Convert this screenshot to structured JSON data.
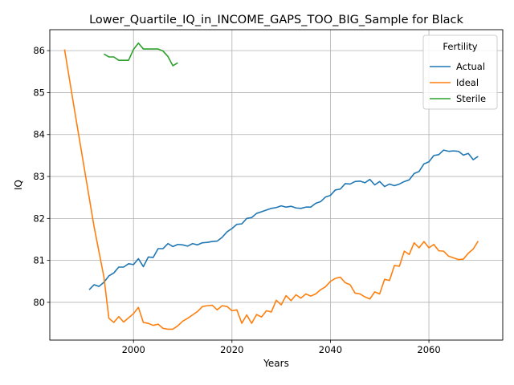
{
  "chart_data": {
    "type": "line",
    "title": "Lower_Quartile_IQ_in_INCOME_GAPS_TOO_BIG_Sample for Black",
    "xlabel": "Years",
    "ylabel": "IQ",
    "xlim": [
      1983,
      2075
    ],
    "ylim": [
      79.1,
      86.5
    ],
    "xticks": [
      2000,
      2020,
      2040,
      2060
    ],
    "yticks": [
      80,
      81,
      82,
      83,
      84,
      85,
      86
    ],
    "grid": true,
    "legend": {
      "title": "Fertility",
      "placement": "top-right"
    },
    "series": [
      {
        "name": "Actual",
        "color": "#1f77b4",
        "points": [
          [
            1991,
            80.3
          ],
          [
            1992,
            80.42
          ],
          [
            1993,
            80.38
          ],
          [
            1994,
            80.48
          ],
          [
            1995,
            80.63
          ],
          [
            1996,
            80.7
          ],
          [
            1997,
            80.84
          ],
          [
            1998,
            80.84
          ],
          [
            1999,
            80.92
          ],
          [
            2000,
            80.9
          ],
          [
            2001,
            81.04
          ],
          [
            2002,
            80.85
          ],
          [
            2003,
            81.08
          ],
          [
            2004,
            81.07
          ],
          [
            2005,
            81.28
          ],
          [
            2006,
            81.28
          ],
          [
            2007,
            81.4
          ],
          [
            2008,
            81.33
          ],
          [
            2009,
            81.38
          ],
          [
            2010,
            81.37
          ],
          [
            2011,
            81.34
          ],
          [
            2012,
            81.4
          ],
          [
            2013,
            81.37
          ],
          [
            2014,
            81.42
          ],
          [
            2015,
            81.43
          ],
          [
            2016,
            81.45
          ],
          [
            2017,
            81.46
          ],
          [
            2018,
            81.55
          ],
          [
            2019,
            81.68
          ],
          [
            2020,
            81.76
          ],
          [
            2021,
            81.86
          ],
          [
            2022,
            81.87
          ],
          [
            2023,
            82.0
          ],
          [
            2024,
            82.02
          ],
          [
            2025,
            82.12
          ],
          [
            2026,
            82.16
          ],
          [
            2027,
            82.2
          ],
          [
            2028,
            82.24
          ],
          [
            2029,
            82.26
          ],
          [
            2030,
            82.3
          ],
          [
            2031,
            82.27
          ],
          [
            2032,
            82.29
          ],
          [
            2033,
            82.25
          ],
          [
            2034,
            82.24
          ],
          [
            2035,
            82.27
          ],
          [
            2036,
            82.27
          ],
          [
            2037,
            82.36
          ],
          [
            2038,
            82.4
          ],
          [
            2039,
            82.51
          ],
          [
            2040,
            82.55
          ],
          [
            2041,
            82.68
          ],
          [
            2042,
            82.7
          ],
          [
            2043,
            82.83
          ],
          [
            2044,
            82.82
          ],
          [
            2045,
            82.88
          ],
          [
            2046,
            82.89
          ],
          [
            2047,
            82.85
          ],
          [
            2048,
            82.93
          ],
          [
            2049,
            82.8
          ],
          [
            2050,
            82.88
          ],
          [
            2051,
            82.76
          ],
          [
            2052,
            82.82
          ],
          [
            2053,
            82.78
          ],
          [
            2054,
            82.82
          ],
          [
            2055,
            82.88
          ],
          [
            2056,
            82.92
          ],
          [
            2057,
            83.07
          ],
          [
            2058,
            83.12
          ],
          [
            2059,
            83.3
          ],
          [
            2060,
            83.35
          ],
          [
            2061,
            83.5
          ],
          [
            2062,
            83.52
          ],
          [
            2063,
            83.63
          ],
          [
            2064,
            83.6
          ],
          [
            2065,
            83.61
          ],
          [
            2066,
            83.6
          ],
          [
            2067,
            83.51
          ],
          [
            2068,
            83.55
          ],
          [
            2069,
            83.4
          ],
          [
            2070,
            83.48
          ]
        ]
      },
      {
        "name": "Ideal",
        "color": "#ff7f0e",
        "points": [
          [
            1986,
            86.03
          ],
          [
            1988,
            84.6
          ],
          [
            1990,
            83.2
          ],
          [
            1992,
            81.8
          ],
          [
            1994,
            80.6
          ],
          [
            1995,
            79.62
          ],
          [
            1996,
            79.52
          ],
          [
            1997,
            79.66
          ],
          [
            1998,
            79.53
          ],
          [
            1999,
            79.63
          ],
          [
            2000,
            79.73
          ],
          [
            2001,
            79.88
          ],
          [
            2002,
            79.52
          ],
          [
            2003,
            79.5
          ],
          [
            2004,
            79.45
          ],
          [
            2005,
            79.48
          ],
          [
            2006,
            79.38
          ],
          [
            2007,
            79.36
          ],
          [
            2008,
            79.36
          ],
          [
            2009,
            79.44
          ],
          [
            2010,
            79.55
          ],
          [
            2011,
            79.62
          ],
          [
            2012,
            79.7
          ],
          [
            2013,
            79.78
          ],
          [
            2014,
            79.9
          ],
          [
            2015,
            79.92
          ],
          [
            2016,
            79.93
          ],
          [
            2017,
            79.82
          ],
          [
            2018,
            79.92
          ],
          [
            2019,
            79.9
          ],
          [
            2020,
            79.8
          ],
          [
            2021,
            79.82
          ],
          [
            2022,
            79.5
          ],
          [
            2023,
            79.7
          ],
          [
            2024,
            79.5
          ],
          [
            2025,
            79.71
          ],
          [
            2026,
            79.65
          ],
          [
            2027,
            79.8
          ],
          [
            2028,
            79.77
          ],
          [
            2029,
            80.05
          ],
          [
            2030,
            79.94
          ],
          [
            2031,
            80.16
          ],
          [
            2032,
            80.04
          ],
          [
            2033,
            80.18
          ],
          [
            2034,
            80.1
          ],
          [
            2035,
            80.2
          ],
          [
            2036,
            80.15
          ],
          [
            2037,
            80.2
          ],
          [
            2038,
            80.3
          ],
          [
            2039,
            80.37
          ],
          [
            2040,
            80.5
          ],
          [
            2041,
            80.57
          ],
          [
            2042,
            80.6
          ],
          [
            2043,
            80.47
          ],
          [
            2044,
            80.42
          ],
          [
            2045,
            80.22
          ],
          [
            2046,
            80.2
          ],
          [
            2047,
            80.13
          ],
          [
            2048,
            80.08
          ],
          [
            2049,
            80.25
          ],
          [
            2050,
            80.2
          ],
          [
            2051,
            80.55
          ],
          [
            2052,
            80.52
          ],
          [
            2053,
            80.88
          ],
          [
            2054,
            80.86
          ],
          [
            2055,
            81.22
          ],
          [
            2056,
            81.14
          ],
          [
            2057,
            81.42
          ],
          [
            2058,
            81.3
          ],
          [
            2059,
            81.45
          ],
          [
            2060,
            81.3
          ],
          [
            2061,
            81.38
          ],
          [
            2062,
            81.23
          ],
          [
            2063,
            81.22
          ],
          [
            2064,
            81.1
          ],
          [
            2065,
            81.06
          ],
          [
            2066,
            81.02
          ],
          [
            2067,
            81.03
          ],
          [
            2068,
            81.17
          ],
          [
            2069,
            81.27
          ],
          [
            2070,
            81.46
          ]
        ]
      },
      {
        "name": "Sterile",
        "color": "#2ca02c",
        "points": [
          [
            1994,
            85.92
          ],
          [
            1995,
            85.85
          ],
          [
            1996,
            85.85
          ],
          [
            1997,
            85.77
          ],
          [
            1998,
            85.77
          ],
          [
            1999,
            85.77
          ],
          [
            2000,
            86.03
          ],
          [
            2001,
            86.18
          ],
          [
            2002,
            86.04
          ],
          [
            2003,
            86.04
          ],
          [
            2004,
            86.04
          ],
          [
            2005,
            86.04
          ],
          [
            2006,
            85.99
          ],
          [
            2007,
            85.86
          ],
          [
            2008,
            85.64
          ],
          [
            2009,
            85.71
          ]
        ]
      }
    ]
  }
}
